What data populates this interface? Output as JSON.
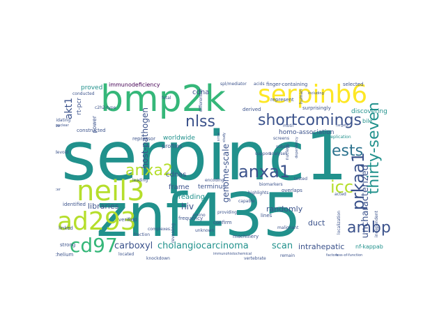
{
  "cloud": {
    "colors": {
      "teal": "#21918c",
      "green": "#35b779",
      "lime": "#b5de2b",
      "yellow": "#fde725",
      "blue": "#3b528b",
      "purple": "#440154",
      "darkteal": "#2c728e"
    },
    "words": {
      "serpinc1": "serpinc1",
      "znf435": "znf435",
      "bmp2k": "bmp2k",
      "serpinb6": "serpinb6",
      "neil3": "neil3",
      "ad293": "ad293",
      "anxa2": "anxa2",
      "anxa1": "anxa1",
      "nlss": "nlss",
      "shortcomings": "shortcomings",
      "prkaa1": "prkaa1",
      "thirty_seven": "thirty-seven",
      "ests": "ests",
      "icc": "icc",
      "ambp": "ambp",
      "cd97": "cd97",
      "carboxyl": "carboxyl",
      "cholangiocarcinoma": "cholangiocarcinoma",
      "scan": "scan",
      "intrahepatic": "intrahepatic",
      "uncharacterized": "uncharacterized",
      "genome_scale": "genome-scale",
      "homo_association": "homo-association",
      "discovering": "discovering",
      "host_pathogen": "host-pathogen",
      "akt1": "akt1",
      "libraries": "libraries",
      "hiv": "hiv",
      "reading": "reading",
      "frame": "frame",
      "terminus": "terminus",
      "randomly": "randomly",
      "cdnas": "cdnas",
      "cdna": "cdna",
      "immunodeficiency": "immunodeficiency",
      "proved": "proved",
      "rt_pcr": "rt-pcr",
      "worldwide": "worldwide",
      "power": "power",
      "duct": "duct",
      "bile": "bile",
      "nf_kappab": "nf-kappab",
      "profiles": "profiles",
      "repressor": "repressor",
      "frequency": "frequency",
      "finger_containing": "finger-containing",
      "represent": "represent",
      "derived": "derived",
      "surprisingly": "surprisingly",
      "selected": "selected",
      "conducted": "conducted",
      "constructed": "constructed",
      "elucidating": "elucidating",
      "identified": "identified",
      "verified": "verified",
      "linked": "linked",
      "strong": "strong",
      "epithelium": "epithelium",
      "located": "located",
      "knockdown": "knockdown",
      "unknown": "unknown",
      "confirm": "confirm",
      "machinery": "machinery",
      "malignant": "malignant",
      "lines": "lines",
      "overlaps": "overlaps",
      "acted": "acted",
      "highlights": "highlights",
      "capable": "capable",
      "biomarkers": "biomarkers",
      "screens": "screens",
      "motif": "motif",
      "subset": "subset",
      "analyses": "analyses",
      "nucleus": "nucleus",
      "localization": "localization",
      "independent": "independent",
      "tested": "tested",
      "replication": "replication",
      "human": "human",
      "fetal": "fetal",
      "differential": "differential",
      "acids": "acids",
      "support": "support",
      "leading": "leading",
      "amino": "amino",
      "complexes": "complexes",
      "fraction": "fraction",
      "revealing": "revealing",
      "encoding": "encoding",
      "providing": "providing",
      "remain": "remain",
      "vertebrate": "vertebrate",
      "devoid": "devoid",
      "rescue": "rescue",
      "c2h2_type": "c2h2-type",
      "nuclear": "nuclear",
      "study": "study",
      "sirna": "sirna",
      "targets": "targets",
      "dependency": "dependency",
      "immunohistochemical": "immunohistochemical",
      "spl_mediator": "spl/mediator",
      "loss_of_function": "loss-of-function",
      "including": "including",
      "cancer": "cancer",
      "factors": "factors"
    }
  }
}
